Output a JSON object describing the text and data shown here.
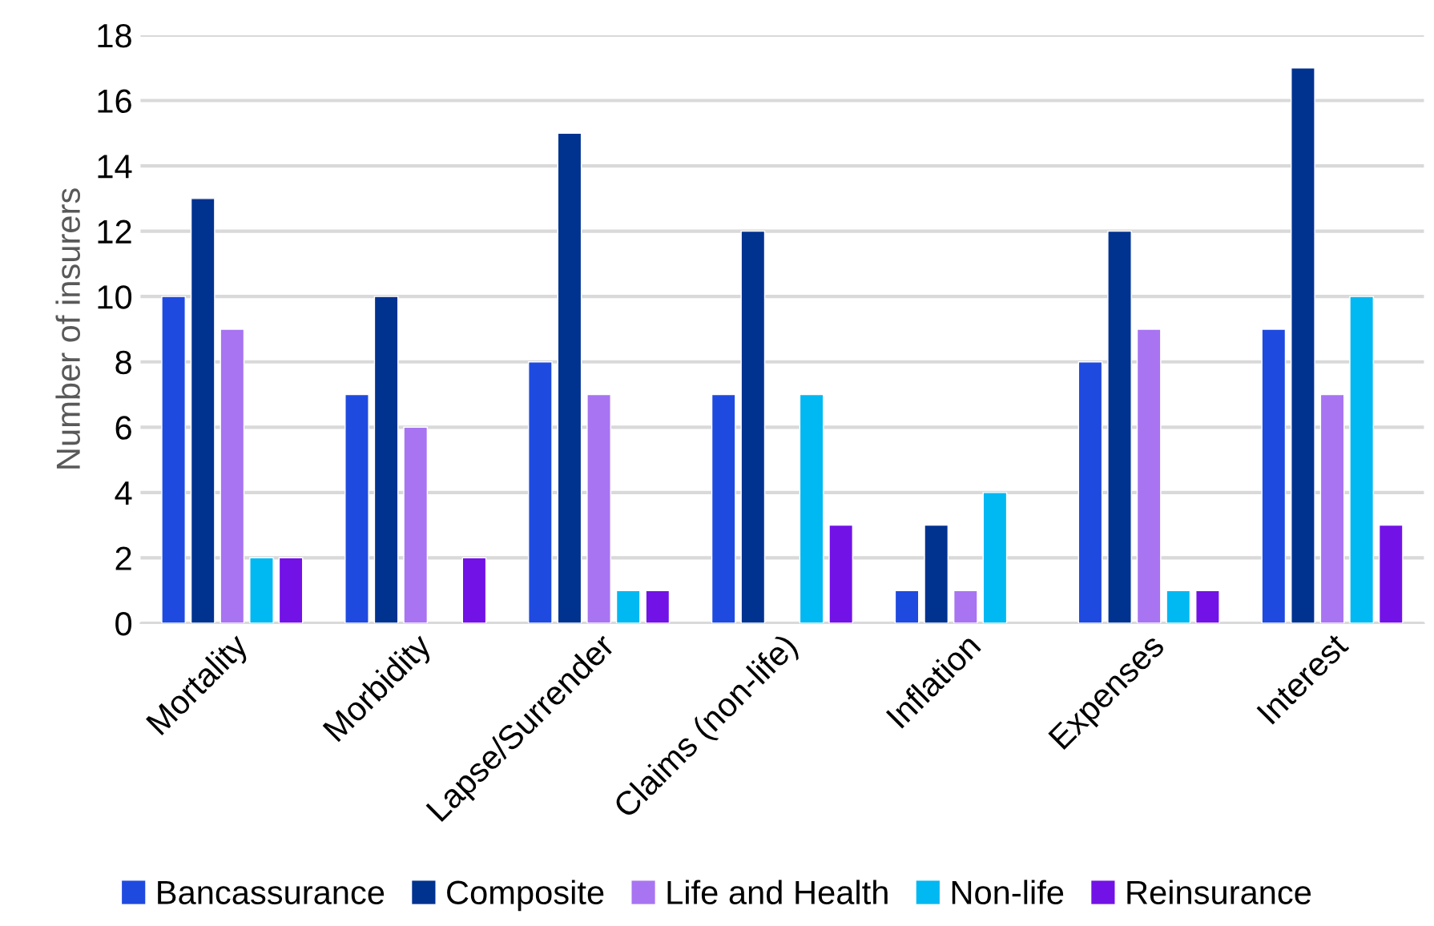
{
  "chart_data": {
    "type": "bar",
    "ylabel": "Number of insurers",
    "categories": [
      "Mortality",
      "Morbidity",
      "Lapse/Surrender",
      "Claims (non-life)",
      "Inflation",
      "Expenses",
      "Interest"
    ],
    "series": [
      {
        "name": "Bancassurance",
        "color": "#1f4ae0",
        "values": [
          10,
          7,
          8,
          7,
          1,
          8,
          9
        ]
      },
      {
        "name": "Composite",
        "color": "#003290",
        "values": [
          13,
          10,
          15,
          12,
          3,
          12,
          17
        ]
      },
      {
        "name": "Life and Health",
        "color": "#a874f2",
        "values": [
          9,
          6,
          7,
          null,
          1,
          9,
          7
        ]
      },
      {
        "name": "Non-life",
        "color": "#00b8f2",
        "values": [
          2,
          null,
          1,
          7,
          4,
          1,
          10
        ]
      },
      {
        "name": "Reinsurance",
        "color": "#7212e6",
        "values": [
          2,
          2,
          1,
          3,
          null,
          1,
          3
        ]
      }
    ],
    "ylim": [
      0,
      18
    ],
    "yticks": [
      0,
      2,
      4,
      6,
      8,
      10,
      12,
      14,
      16,
      18
    ],
    "grid": "y",
    "legend": "bottom"
  }
}
